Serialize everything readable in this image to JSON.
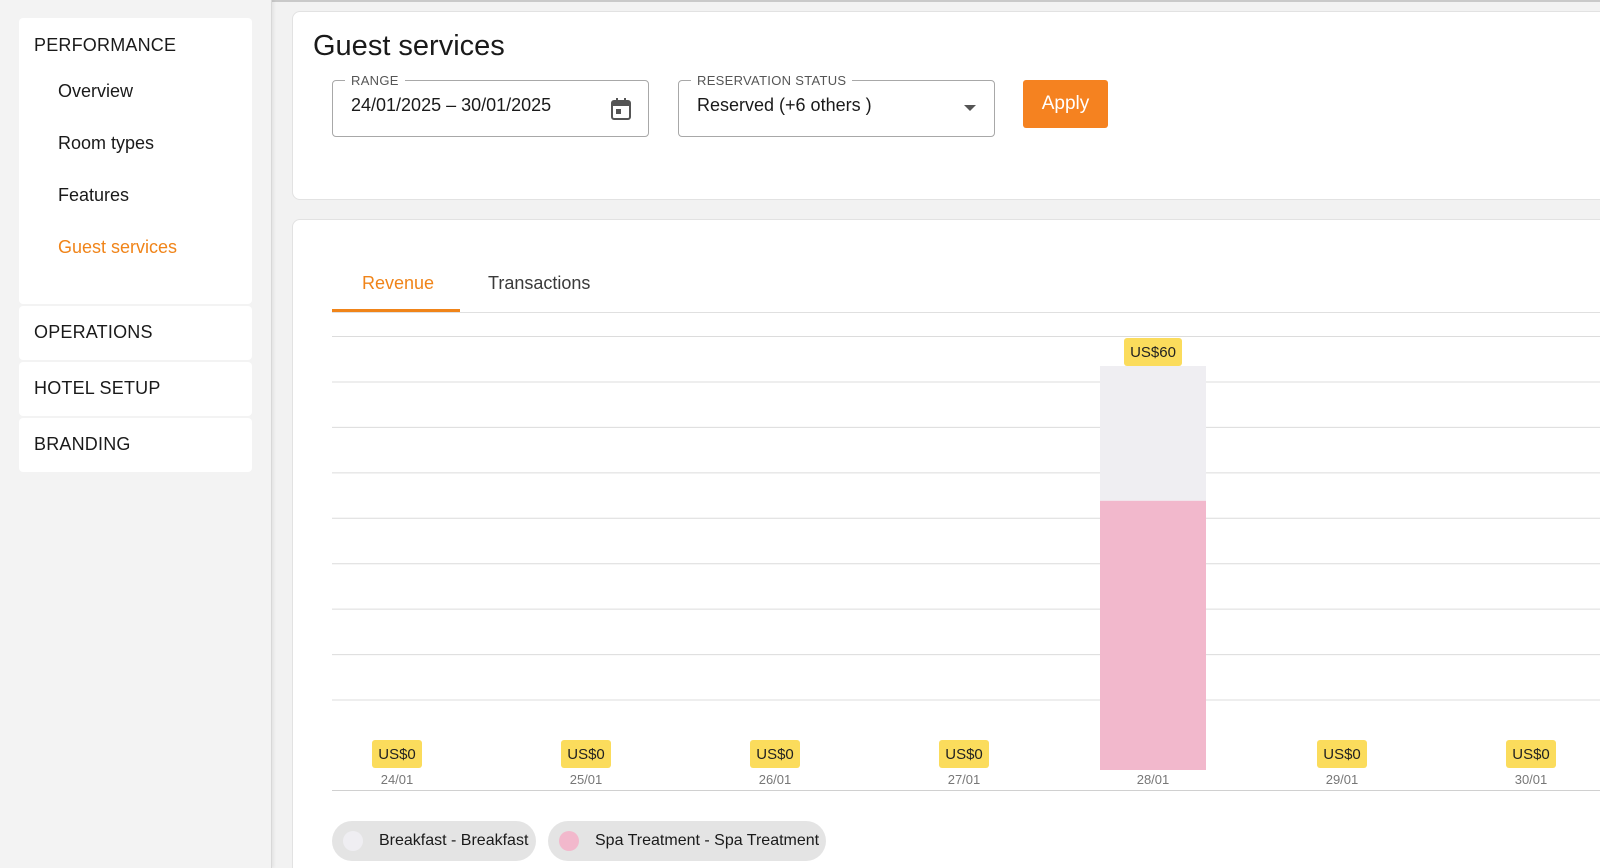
{
  "sidebar": {
    "performance": {
      "title": "PERFORMANCE",
      "items": [
        {
          "label": "Overview"
        },
        {
          "label": "Room types"
        },
        {
          "label": "Features"
        },
        {
          "label": "Guest services"
        }
      ],
      "active_item": "Guest services"
    },
    "operations": {
      "title": "OPERATIONS"
    },
    "hotel_setup": {
      "title": "HOTEL SETUP"
    },
    "branding": {
      "title": "BRANDING"
    }
  },
  "header": {
    "title": "Guest services"
  },
  "filters": {
    "range": {
      "label": "RANGE",
      "value": "24/01/2025 – 30/01/2025",
      "icon": "calendar-icon"
    },
    "reservation_status": {
      "label": "RESERVATION STATUS",
      "value": "Reserved (+6 others )",
      "icon": "chevron-down-icon"
    },
    "apply_label": "Apply"
  },
  "tabs": [
    {
      "label": "Revenue",
      "active": true
    },
    {
      "label": "Transactions",
      "active": false
    }
  ],
  "colors": {
    "accent": "#f58220",
    "active_text": "#f08419",
    "breakfast": "#efeef2",
    "spa": "#f2b8cc",
    "label_bg": "#fbdc5c"
  },
  "chart_data": {
    "type": "bar",
    "stacked": true,
    "title": "Revenue",
    "categories": [
      "24/01",
      "25/01",
      "26/01",
      "27/01",
      "28/01",
      "29/01",
      "30/01"
    ],
    "series": [
      {
        "name": "Breakfast - Breakfast",
        "color": "#efeef2",
        "values": [
          0,
          0,
          0,
          0,
          20,
          0,
          0
        ]
      },
      {
        "name": "Spa Treatment - Spa Treatment",
        "color": "#f2b8cc",
        "values": [
          0,
          0,
          0,
          0,
          40,
          0,
          0
        ]
      }
    ],
    "total_labels": [
      "US$0",
      "US$0",
      "US$0",
      "US$0",
      "US$60",
      "US$0",
      "US$0"
    ],
    "ylim": [
      0,
      60
    ],
    "gridlines": 9,
    "xlabel": "",
    "ylabel": ""
  }
}
